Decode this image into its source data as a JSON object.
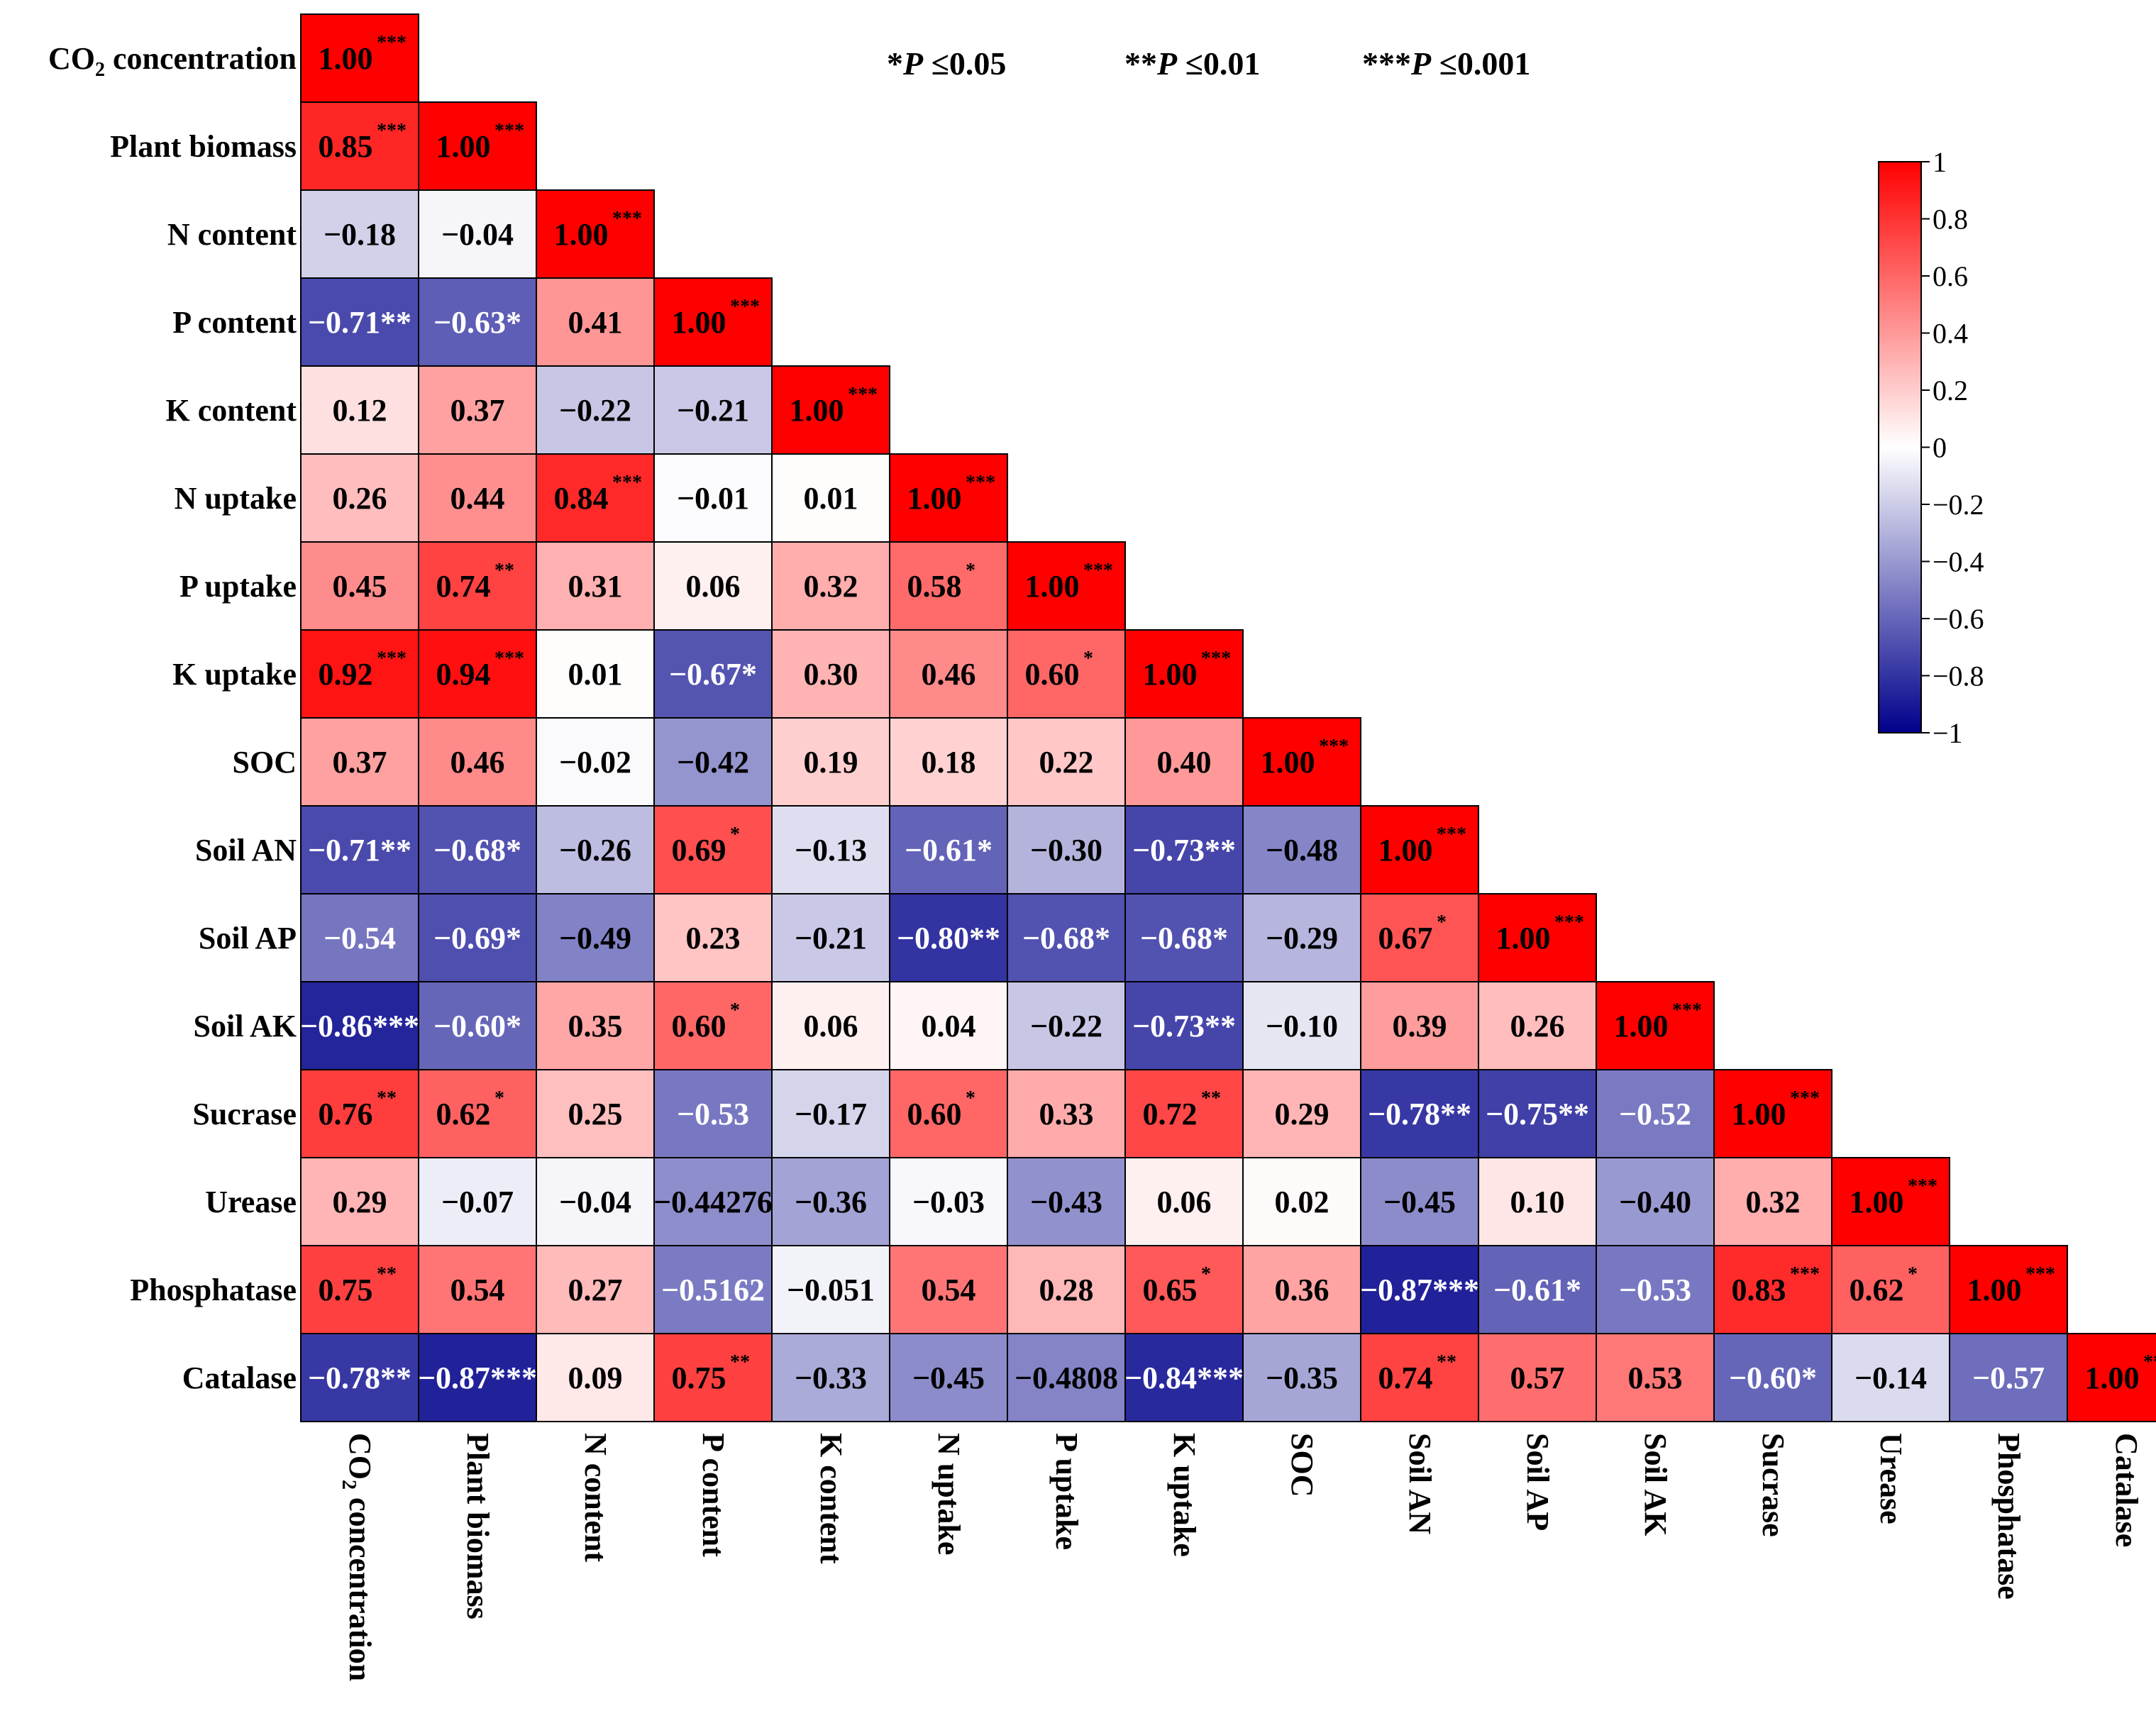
{
  "chart_data": {
    "type": "heatmap",
    "title": "",
    "variables": [
      "CO2 concentration",
      "Plant biomass",
      "N content",
      "P content",
      "K content",
      "N uptake",
      "P uptake",
      "K uptake",
      "SOC",
      "Soil AN",
      "Soil AP",
      "Soil AK",
      "Sucrase",
      "Urease",
      "Phosphatase",
      "Catalase"
    ],
    "label_parts": {
      "co2_main_1": "CO",
      "co2_sub": "2",
      "co2_main_2": " concentration"
    },
    "significance_legend": [
      {
        "stars": "*",
        "p": "P",
        "text": " ≤0.05"
      },
      {
        "stars": "**",
        "p": "P",
        "text": " ≤0.01"
      },
      {
        "stars": "***",
        "p": "P",
        "text": " ≤0.001"
      }
    ],
    "colorbar": {
      "range": [
        -1,
        1
      ],
      "ticks": [
        "1",
        "0.8",
        "0.6",
        "0.4",
        "0.2",
        "0",
        "−0.2",
        "−0.4",
        "−0.6",
        "−0.8",
        "−1"
      ],
      "colors": {
        "high": "#ff0000",
        "mid": "#ffffff",
        "low": "#00008b"
      }
    },
    "cells": [
      [
        {
          "text": "1.00",
          "sup": "***"
        }
      ],
      [
        {
          "text": "0.85",
          "sup": "***"
        },
        {
          "text": "1.00",
          "sup": "***"
        }
      ],
      [
        {
          "text": "−0.18",
          "sup": ""
        },
        {
          "text": "−0.04",
          "sup": ""
        },
        {
          "text": "1.00",
          "sup": "***"
        }
      ],
      [
        {
          "text": "−0.71**",
          "sup": ""
        },
        {
          "text": "−0.63*",
          "sup": ""
        },
        {
          "text": "0.41",
          "sup": ""
        },
        {
          "text": "1.00",
          "sup": "***"
        }
      ],
      [
        {
          "text": "0.12",
          "sup": ""
        },
        {
          "text": "0.37",
          "sup": ""
        },
        {
          "text": "−0.22",
          "sup": ""
        },
        {
          "text": "−0.21",
          "sup": ""
        },
        {
          "text": "1.00",
          "sup": "***"
        }
      ],
      [
        {
          "text": "0.26",
          "sup": ""
        },
        {
          "text": "0.44",
          "sup": ""
        },
        {
          "text": "0.84",
          "sup": "***"
        },
        {
          "text": "−0.01",
          "sup": ""
        },
        {
          "text": "0.01",
          "sup": ""
        },
        {
          "text": "1.00",
          "sup": "***"
        }
      ],
      [
        {
          "text": "0.45",
          "sup": ""
        },
        {
          "text": "0.74",
          "sup": "**"
        },
        {
          "text": "0.31",
          "sup": ""
        },
        {
          "text": "0.06",
          "sup": ""
        },
        {
          "text": "0.32",
          "sup": ""
        },
        {
          "text": "0.58",
          "sup": "*"
        },
        {
          "text": "1.00",
          "sup": "***"
        }
      ],
      [
        {
          "text": "0.92",
          "sup": "***"
        },
        {
          "text": "0.94",
          "sup": "***"
        },
        {
          "text": "0.01",
          "sup": ""
        },
        {
          "text": "−0.67*",
          "sup": ""
        },
        {
          "text": "0.30",
          "sup": ""
        },
        {
          "text": "0.46",
          "sup": ""
        },
        {
          "text": "0.60",
          "sup": "*"
        },
        {
          "text": "1.00",
          "sup": "***"
        }
      ],
      [
        {
          "text": "0.37",
          "sup": ""
        },
        {
          "text": "0.46",
          "sup": ""
        },
        {
          "text": "−0.02",
          "sup": ""
        },
        {
          "text": "−0.42",
          "sup": ""
        },
        {
          "text": "0.19",
          "sup": ""
        },
        {
          "text": "0.18",
          "sup": ""
        },
        {
          "text": "0.22",
          "sup": ""
        },
        {
          "text": "0.40",
          "sup": ""
        },
        {
          "text": "1.00",
          "sup": "***"
        }
      ],
      [
        {
          "text": "−0.71**",
          "sup": ""
        },
        {
          "text": "−0.68*",
          "sup": ""
        },
        {
          "text": "−0.26",
          "sup": ""
        },
        {
          "text": "0.69",
          "sup": "*"
        },
        {
          "text": "−0.13",
          "sup": ""
        },
        {
          "text": "−0.61*",
          "sup": ""
        },
        {
          "text": "−0.30",
          "sup": ""
        },
        {
          "text": "−0.73**",
          "sup": ""
        },
        {
          "text": "−0.48",
          "sup": ""
        },
        {
          "text": "1.00",
          "sup": "***"
        }
      ],
      [
        {
          "text": "−0.54",
          "sup": ""
        },
        {
          "text": "−0.69*",
          "sup": ""
        },
        {
          "text": "−0.49",
          "sup": ""
        },
        {
          "text": "0.23",
          "sup": ""
        },
        {
          "text": "−0.21",
          "sup": ""
        },
        {
          "text": "−0.80**",
          "sup": ""
        },
        {
          "text": "−0.68*",
          "sup": ""
        },
        {
          "text": "−0.68*",
          "sup": ""
        },
        {
          "text": "−0.29",
          "sup": ""
        },
        {
          "text": "0.67",
          "sup": "*"
        },
        {
          "text": "1.00",
          "sup": "***"
        }
      ],
      [
        {
          "text": "−0.86***",
          "sup": ""
        },
        {
          "text": "−0.60*",
          "sup": ""
        },
        {
          "text": "0.35",
          "sup": ""
        },
        {
          "text": "0.60",
          "sup": "*"
        },
        {
          "text": "0.06",
          "sup": ""
        },
        {
          "text": "0.04",
          "sup": ""
        },
        {
          "text": "−0.22",
          "sup": ""
        },
        {
          "text": "−0.73**",
          "sup": ""
        },
        {
          "text": "−0.10",
          "sup": ""
        },
        {
          "text": "0.39",
          "sup": ""
        },
        {
          "text": "0.26",
          "sup": ""
        },
        {
          "text": "1.00",
          "sup": "***"
        }
      ],
      [
        {
          "text": "0.76",
          "sup": "**"
        },
        {
          "text": "0.62",
          "sup": "*"
        },
        {
          "text": "0.25",
          "sup": ""
        },
        {
          "text": "−0.53",
          "sup": ""
        },
        {
          "text": "−0.17",
          "sup": ""
        },
        {
          "text": "0.60",
          "sup": "*"
        },
        {
          "text": "0.33",
          "sup": ""
        },
        {
          "text": "0.72",
          "sup": "**"
        },
        {
          "text": "0.29",
          "sup": ""
        },
        {
          "text": "−0.78**",
          "sup": ""
        },
        {
          "text": "−0.75**",
          "sup": ""
        },
        {
          "text": "−0.52",
          "sup": ""
        },
        {
          "text": "1.00",
          "sup": "***"
        }
      ],
      [
        {
          "text": "0.29",
          "sup": ""
        },
        {
          "text": "−0.07",
          "sup": ""
        },
        {
          "text": "−0.04",
          "sup": ""
        },
        {
          "text": "−0.44276",
          "sup": ""
        },
        {
          "text": "−0.36",
          "sup": ""
        },
        {
          "text": "−0.03",
          "sup": ""
        },
        {
          "text": "−0.43",
          "sup": ""
        },
        {
          "text": "0.06",
          "sup": ""
        },
        {
          "text": "0.02",
          "sup": ""
        },
        {
          "text": "−0.45",
          "sup": ""
        },
        {
          "text": "0.10",
          "sup": ""
        },
        {
          "text": "−0.40",
          "sup": ""
        },
        {
          "text": "0.32",
          "sup": ""
        },
        {
          "text": "1.00",
          "sup": "***"
        }
      ],
      [
        {
          "text": "0.75",
          "sup": "**"
        },
        {
          "text": "0.54",
          "sup": ""
        },
        {
          "text": "0.27",
          "sup": ""
        },
        {
          "text": "−0.5162",
          "sup": ""
        },
        {
          "text": "−0.051",
          "sup": ""
        },
        {
          "text": "0.54",
          "sup": ""
        },
        {
          "text": "0.28",
          "sup": ""
        },
        {
          "text": "0.65",
          "sup": "*"
        },
        {
          "text": "0.36",
          "sup": ""
        },
        {
          "text": "−0.87***",
          "sup": ""
        },
        {
          "text": "−0.61*",
          "sup": ""
        },
        {
          "text": "−0.53",
          "sup": ""
        },
        {
          "text": "0.83",
          "sup": "***"
        },
        {
          "text": "0.62",
          "sup": "*"
        },
        {
          "text": "1.00",
          "sup": "***"
        }
      ],
      [
        {
          "text": "−0.78**",
          "sup": ""
        },
        {
          "text": "−0.87***",
          "sup": ""
        },
        {
          "text": "0.09",
          "sup": ""
        },
        {
          "text": "0.75",
          "sup": "**"
        },
        {
          "text": "−0.33",
          "sup": ""
        },
        {
          "text": "−0.45",
          "sup": ""
        },
        {
          "text": "−0.4808",
          "sup": ""
        },
        {
          "text": "−0.84***",
          "sup": ""
        },
        {
          "text": "−0.35",
          "sup": ""
        },
        {
          "text": "0.74",
          "sup": "**"
        },
        {
          "text": "0.57",
          "sup": ""
        },
        {
          "text": "0.53",
          "sup": ""
        },
        {
          "text": "−0.60*",
          "sup": ""
        },
        {
          "text": "−0.14",
          "sup": ""
        },
        {
          "text": "−0.57",
          "sup": ""
        },
        {
          "text": "1.00",
          "sup": "***"
        }
      ]
    ],
    "values": [
      [
        1.0
      ],
      [
        0.85,
        1.0
      ],
      [
        -0.18,
        -0.04,
        1.0
      ],
      [
        -0.71,
        -0.63,
        0.41,
        1.0
      ],
      [
        0.12,
        0.37,
        -0.22,
        -0.21,
        1.0
      ],
      [
        0.26,
        0.44,
        0.84,
        -0.01,
        0.01,
        1.0
      ],
      [
        0.45,
        0.74,
        0.31,
        0.06,
        0.32,
        0.58,
        1.0
      ],
      [
        0.92,
        0.94,
        0.01,
        -0.67,
        0.3,
        0.46,
        0.6,
        1.0
      ],
      [
        0.37,
        0.46,
        -0.02,
        -0.42,
        0.19,
        0.18,
        0.22,
        0.4,
        1.0
      ],
      [
        -0.71,
        -0.68,
        -0.26,
        0.69,
        -0.13,
        -0.61,
        -0.3,
        -0.73,
        -0.48,
        1.0
      ],
      [
        -0.54,
        -0.69,
        -0.49,
        0.23,
        -0.21,
        -0.8,
        -0.68,
        -0.68,
        -0.29,
        0.67,
        1.0
      ],
      [
        -0.86,
        -0.6,
        0.35,
        0.6,
        0.06,
        0.04,
        -0.22,
        -0.73,
        -0.1,
        0.39,
        0.26,
        1.0
      ],
      [
        0.76,
        0.62,
        0.25,
        -0.53,
        -0.17,
        0.6,
        0.33,
        0.72,
        0.29,
        -0.78,
        -0.75,
        -0.52,
        1.0
      ],
      [
        0.29,
        -0.07,
        -0.04,
        -0.44276,
        -0.36,
        -0.03,
        -0.43,
        0.06,
        0.02,
        -0.45,
        0.1,
        -0.4,
        0.32,
        1.0
      ],
      [
        0.75,
        0.54,
        0.27,
        -0.5162,
        -0.051,
        0.54,
        0.28,
        0.65,
        0.36,
        -0.87,
        -0.61,
        -0.53,
        0.83,
        0.62,
        1.0
      ],
      [
        -0.78,
        -0.87,
        0.09,
        0.75,
        -0.33,
        -0.45,
        -0.4808,
        -0.84,
        -0.35,
        0.74,
        0.57,
        0.53,
        -0.6,
        -0.14,
        -0.57,
        1.0
      ]
    ]
  }
}
